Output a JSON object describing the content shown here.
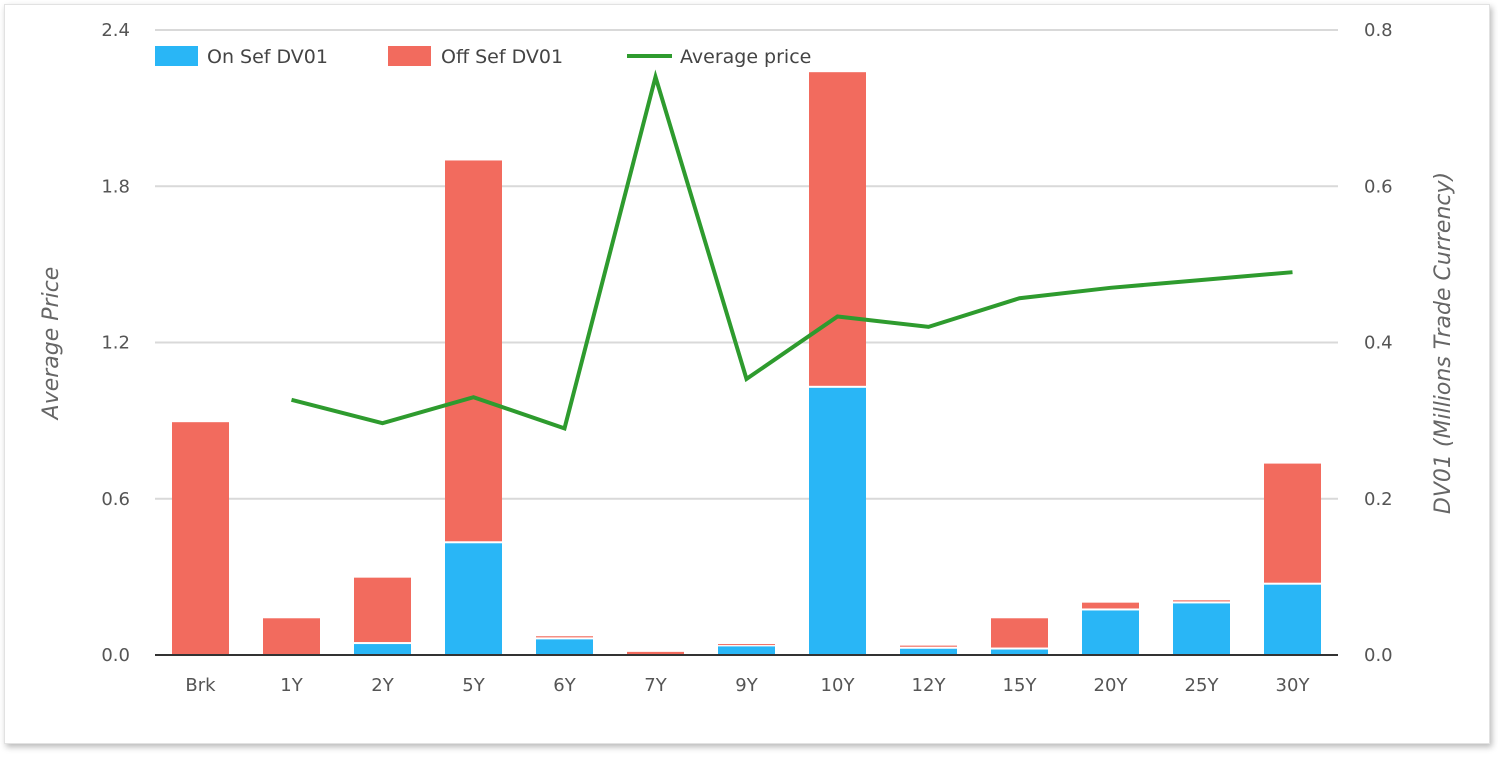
{
  "chart_data": {
    "type": "bar",
    "stacked": true,
    "categories": [
      "Brk",
      "1Y",
      "2Y",
      "5Y",
      "6Y",
      "7Y",
      "9Y",
      "10Y",
      "12Y",
      "15Y",
      "20Y",
      "25Y",
      "30Y"
    ],
    "series": [
      {
        "name": "On Sef DV01",
        "type": "bar",
        "axis": "right",
        "color": "#29b6f6",
        "values": [
          0,
          0,
          0.014,
          0.143,
          0.02,
          0,
          0.011,
          0.342,
          0.008,
          0.007,
          0.057,
          0.066,
          0.09
        ]
      },
      {
        "name": "Off Sef DV01",
        "type": "bar",
        "axis": "right",
        "color": "#f26b5e",
        "values": [
          0.298,
          0.047,
          0.085,
          0.49,
          0.004,
          0.004,
          0.003,
          0.404,
          0.004,
          0.04,
          0.01,
          0.004,
          0.155
        ]
      },
      {
        "name": "Average price",
        "type": "line",
        "axis": "left",
        "color": "#2e9b2e",
        "values": [
          null,
          0.98,
          0.89,
          0.99,
          0.87,
          2.22,
          1.06,
          1.3,
          1.26,
          1.37,
          1.41,
          1.44,
          1.47
        ]
      }
    ],
    "left_axis": {
      "label": "Average Price",
      "ylim": [
        0,
        2.4
      ],
      "ticks": [
        "0.0",
        "0.6",
        "1.2",
        "1.8",
        "2.4"
      ]
    },
    "right_axis": {
      "label": "DV01 (Millions Trade Currency)",
      "ylim": [
        0,
        0.8
      ],
      "ticks": [
        "0.0",
        "0.2",
        "0.4",
        "0.6",
        "0.8"
      ]
    },
    "grid": true,
    "legend": {
      "placement": "top-left"
    }
  }
}
